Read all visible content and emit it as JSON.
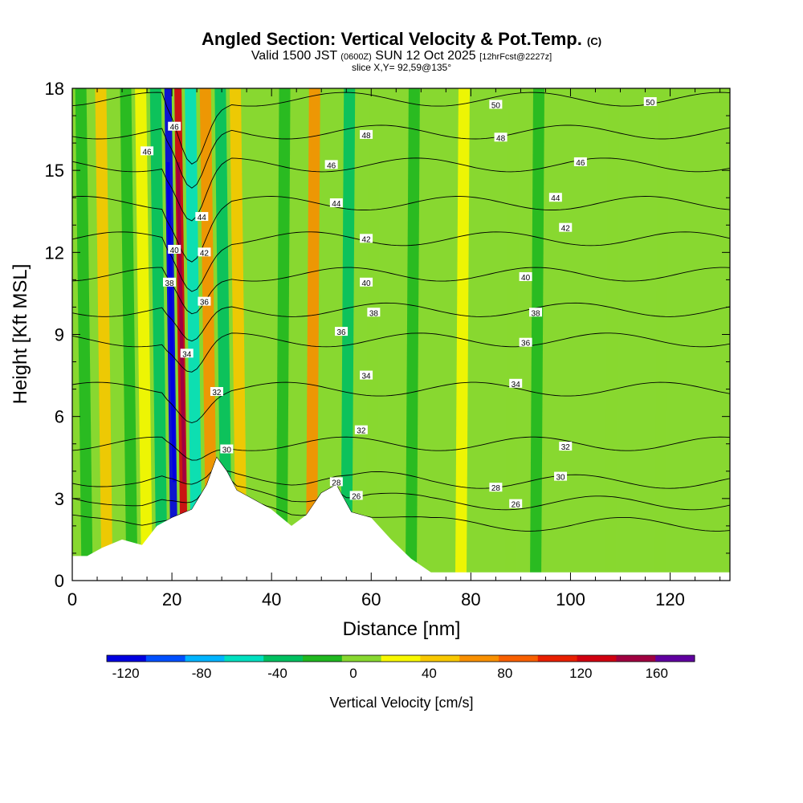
{
  "title": {
    "main": "Angled Section: Vertical Velocity & Pot.Temp.",
    "main_units": "(C)",
    "valid_prefix": "Valid 1500 JST",
    "valid_z": "(0600Z)",
    "valid_date": "SUN 12 Oct 2025",
    "forecast": "[12hrFcst@2227z]",
    "slice": "slice X,Y= 92,59@135°"
  },
  "chart_data": {
    "type": "heatmap",
    "title": "Angled Section: Vertical Velocity & Pot.Temp. (C)",
    "xlabel": "Distance [nm]",
    "ylabel": "Height [Kft MSL]",
    "xlim": [
      0,
      132
    ],
    "ylim": [
      0,
      18
    ],
    "x_ticks": [
      0,
      20,
      40,
      60,
      80,
      100,
      120
    ],
    "y_ticks": [
      0,
      3,
      6,
      9,
      12,
      15,
      18
    ],
    "colorbar": {
      "label": "Vertical Velocity [cm/s]",
      "tick_values": [
        -120,
        -80,
        -40,
        0,
        40,
        80,
        120,
        160
      ],
      "tick_labels": [
        "-120",
        "-80",
        "-40",
        "0",
        "40",
        "80",
        "120",
        "160"
      ],
      "range": [
        -130,
        180
      ],
      "colors": [
        "#0000e0",
        "#0050ff",
        "#00b4ff",
        "#00e0c0",
        "#00c060",
        "#20b820",
        "#88d830",
        "#f8f800",
        "#f8c800",
        "#f89000",
        "#f86000",
        "#e82000",
        "#d00010",
        "#a00040",
        "#6000a0"
      ]
    },
    "vertical_velocity_features": [
      {
        "x": 3,
        "value": -10
      },
      {
        "x": 7,
        "value": 40
      },
      {
        "x": 12,
        "value": -20
      },
      {
        "x": 15,
        "value": 20
      },
      {
        "x": 18,
        "value": -40
      },
      {
        "x": 20.5,
        "value": -110
      },
      {
        "x": 22.5,
        "value": 130
      },
      {
        "x": 25,
        "value": -60
      },
      {
        "x": 28,
        "value": 60
      },
      {
        "x": 31,
        "value": -40
      },
      {
        "x": 34,
        "value": 40
      },
      {
        "x": 42,
        "value": -15
      },
      {
        "x": 48,
        "value": 60
      },
      {
        "x": 55,
        "value": -40
      },
      {
        "x": 60,
        "value": 10
      },
      {
        "x": 68,
        "value": -10
      },
      {
        "x": 78,
        "value": 30
      },
      {
        "x": 88,
        "value": 5
      },
      {
        "x": 93,
        "value": -10
      },
      {
        "x": 108,
        "value": 10
      },
      {
        "x": 118,
        "value": -5
      }
    ],
    "terrain": [
      {
        "x": 0,
        "height": 0.9
      },
      {
        "x": 3,
        "height": 0.9
      },
      {
        "x": 6,
        "height": 1.2
      },
      {
        "x": 10,
        "height": 1.5
      },
      {
        "x": 14,
        "height": 1.3
      },
      {
        "x": 17,
        "height": 2.0
      },
      {
        "x": 20,
        "height": 2.3
      },
      {
        "x": 24,
        "height": 2.6
      },
      {
        "x": 27,
        "height": 3.5
      },
      {
        "x": 29,
        "height": 4.5
      },
      {
        "x": 31,
        "height": 4.0
      },
      {
        "x": 33,
        "height": 3.3
      },
      {
        "x": 36,
        "height": 3.0
      },
      {
        "x": 40,
        "height": 2.6
      },
      {
        "x": 44,
        "height": 2.0
      },
      {
        "x": 47,
        "height": 2.4
      },
      {
        "x": 50,
        "height": 3.2
      },
      {
        "x": 53,
        "height": 3.5
      },
      {
        "x": 56,
        "height": 2.5
      },
      {
        "x": 60,
        "height": 2.3
      },
      {
        "x": 64,
        "height": 1.5
      },
      {
        "x": 68,
        "height": 0.8
      },
      {
        "x": 72,
        "height": 0.3
      },
      {
        "x": 132,
        "height": 0.3
      }
    ],
    "pot_temp_contours": [
      {
        "label": "26",
        "height": 2.0
      },
      {
        "label": "28",
        "height": 2.8
      },
      {
        "label": "30",
        "height": 3.6
      },
      {
        "label": "32",
        "height": 5.0
      },
      {
        "label": "34",
        "height": 7.0
      },
      {
        "label": "36",
        "height": 8.8
      },
      {
        "label": "38",
        "height": 9.9
      },
      {
        "label": "40",
        "height": 11.2
      },
      {
        "label": "42",
        "height": 12.5
      },
      {
        "label": "44",
        "height": 13.8
      },
      {
        "label": "46",
        "height": 15.2
      },
      {
        "label": "48",
        "height": 16.4
      },
      {
        "label": "50",
        "height": 17.6
      }
    ],
    "contour_labels": [
      {
        "text": "50",
        "x": 116,
        "y": 17.5
      },
      {
        "text": "50",
        "x": 85,
        "y": 17.4
      },
      {
        "text": "48",
        "x": 86,
        "y": 16.2
      },
      {
        "text": "48",
        "x": 59,
        "y": 16.3
      },
      {
        "text": "46",
        "x": 102,
        "y": 15.3
      },
      {
        "text": "46",
        "x": 52,
        "y": 15.2
      },
      {
        "text": "46",
        "x": 15,
        "y": 15.7
      },
      {
        "text": "46",
        "x": 20.5,
        "y": 16.6
      },
      {
        "text": "44",
        "x": 97,
        "y": 14.0
      },
      {
        "text": "44",
        "x": 53,
        "y": 13.8
      },
      {
        "text": "44",
        "x": 26,
        "y": 13.3
      },
      {
        "text": "42",
        "x": 99,
        "y": 12.9
      },
      {
        "text": "42",
        "x": 59,
        "y": 12.5
      },
      {
        "text": "42",
        "x": 26.5,
        "y": 12.0
      },
      {
        "text": "40",
        "x": 91,
        "y": 11.1
      },
      {
        "text": "40",
        "x": 59,
        "y": 10.9
      },
      {
        "text": "40",
        "x": 20.5,
        "y": 12.1
      },
      {
        "text": "38",
        "x": 93,
        "y": 9.8
      },
      {
        "text": "38",
        "x": 60.5,
        "y": 9.8
      },
      {
        "text": "38",
        "x": 19.5,
        "y": 10.9
      },
      {
        "text": "36",
        "x": 91,
        "y": 8.7
      },
      {
        "text": "36",
        "x": 54,
        "y": 9.1
      },
      {
        "text": "36",
        "x": 26.5,
        "y": 10.2
      },
      {
        "text": "34",
        "x": 89,
        "y": 7.2
      },
      {
        "text": "34",
        "x": 59,
        "y": 7.5
      },
      {
        "text": "34",
        "x": 23,
        "y": 8.3
      },
      {
        "text": "32",
        "x": 99,
        "y": 4.9
      },
      {
        "text": "32",
        "x": 58,
        "y": 5.5
      },
      {
        "text": "32",
        "x": 29,
        "y": 6.9
      },
      {
        "text": "30",
        "x": 98,
        "y": 3.8
      },
      {
        "text": "30",
        "x": 31,
        "y": 4.8
      },
      {
        "text": "28",
        "x": 85,
        "y": 3.4
      },
      {
        "text": "28",
        "x": 53,
        "y": 3.6
      },
      {
        "text": "26",
        "x": 89,
        "y": 2.8
      },
      {
        "text": "26",
        "x": 57,
        "y": 3.1
      }
    ]
  }
}
